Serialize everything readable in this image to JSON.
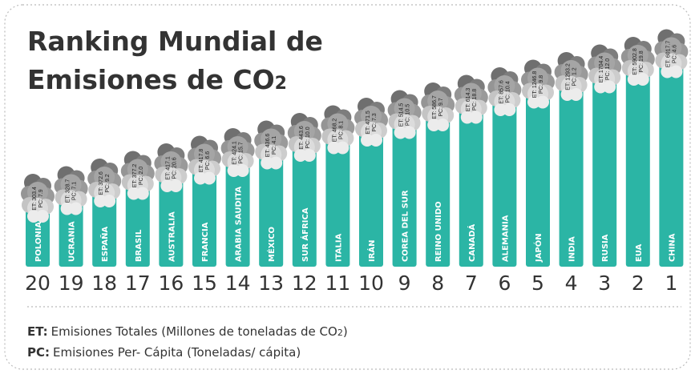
{
  "chart_data": {
    "type": "ranking",
    "title": {
      "lines": [
        "Ranking Mundial de",
        "Emisiones de CO"
      ],
      "sub": "2"
    },
    "countries": [
      "POLONIA",
      "UCRANIA",
      "ESPAÑA",
      "BRASIL",
      "AUSTRALIA",
      "FRANCIA",
      "ARABIA SAUDITA",
      "MÉXICO",
      "SUR ÁFRICA",
      "ITALIA",
      "IRÁN",
      "COREA DEL SUR",
      "REINO UNIDO",
      "CANADÁ",
      "ALEMANIA",
      "JAPÓN",
      "INDIA",
      "RUSIA",
      "EUA",
      "CHINA"
    ],
    "ranks": [
      20,
      19,
      18,
      17,
      16,
      15,
      14,
      13,
      12,
      11,
      10,
      9,
      8,
      7,
      6,
      5,
      4,
      3,
      2,
      1
    ],
    "et": [
      303.4,
      328.7,
      372.6,
      377.2,
      417.1,
      417.8,
      424.1,
      436.6,
      443.6,
      468.2,
      471.5,
      514.5,
      586.7,
      614.3,
      857.6,
      1246.8,
      1293.2,
      1704.4,
      5902.8,
      6017.7
    ],
    "et_labels": [
      "ET: 303.4",
      "ET: 328.7",
      "ET: 372.6",
      "ET: 377.2",
      "ET: 417.1",
      "ET: 417.8",
      "ET: 424.1",
      "ET: 436.6",
      "ET: 443.6",
      "ET: 468.2",
      "ET: 471.5",
      "ET: 514.5",
      "ET: 586.7",
      "ET: 614.3",
      "ET: 857.6",
      "ET: 1246.8",
      "ET: 1293.2",
      "ET: 1704.4",
      "ET: 5902.8",
      "ET: 6017.7"
    ],
    "pc": [
      7.9,
      7.1,
      9.2,
      2.0,
      20.6,
      6.6,
      15.7,
      4.1,
      10.0,
      8.1,
      7.3,
      10.5,
      9.7,
      18.8,
      10.4,
      9.8,
      1.2,
      12.0,
      19.8,
      4.6
    ],
    "pc_labels": [
      "PC: 7.9",
      "PC: 7.1",
      "PC: 9.2",
      "PC: 2.0",
      "PC: 20.6",
      "PC: 6.6",
      "PC: 15.7",
      "PC: 4.1",
      "PC: 10.0",
      "PC: 8.1",
      "PC: 7.3",
      "PC: 10.5",
      "PC: 9.7",
      "PC: 18.8",
      "PC: 10.4",
      "PC: 9.8",
      "PC: 1.2",
      "PC: 12.0",
      "PC: 19.8",
      "PC: 4.6"
    ],
    "color": "#2bb5a5",
    "legend": [
      {
        "key": "ET:",
        "parts": [
          "Emisiones Totales (Millones de toneladas de CO",
          "2",
          ")"
        ]
      },
      {
        "key": "PC:",
        "parts": [
          "Emisiones Per- Cápita (Toneladas/ cápita)"
        ]
      }
    ]
  }
}
